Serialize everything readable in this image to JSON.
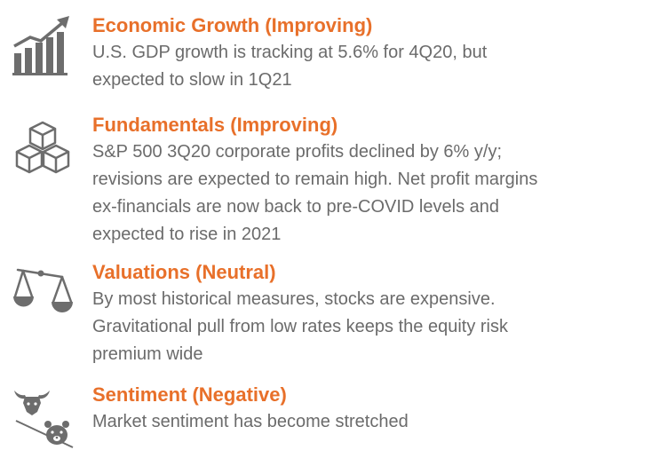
{
  "colors": {
    "title": "#e8702a",
    "body": "#6b6b6b",
    "icon": "#6d6d6d"
  },
  "items": [
    {
      "icon": "growth-chart-icon",
      "title": "Economic Growth (Improving)",
      "lines": [
        "U.S. GDP growth is tracking at 5.6% for 4Q20, but",
        "expected to slow in 1Q21"
      ]
    },
    {
      "icon": "cubes-icon",
      "title": "Fundamentals (Improving)",
      "lines": [
        "S&P 500 3Q20 corporate profits declined by 6% y/y;",
        "revisions are expected to remain high. Net profit margins",
        "ex-financials are now back to pre-COVID levels and",
        "expected to rise in 2021"
      ]
    },
    {
      "icon": "scales-icon",
      "title": "Valuations (Neutral)",
      "lines": [
        "By most historical measures, stocks are expensive.",
        "Gravitational pull from low rates keeps the equity risk",
        "premium wide"
      ]
    },
    {
      "icon": "bull-bear-icon",
      "title": "Sentiment (Negative)",
      "lines": [
        "Market sentiment has become stretched"
      ]
    }
  ]
}
